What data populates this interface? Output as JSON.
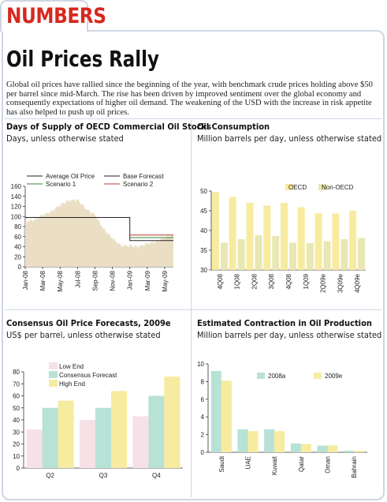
{
  "section_label": "NUMBERS",
  "headline": "Oil Prices Rally",
  "intro": "Global oil prices have rallied since the beginning of the year, with benchmark crude prices holding above $50 per barrel since mid-March. The rise has been driven by improved sentiment over the global economy and consequently expectations of higher oil demand. The weakening of the USD with the increase in risk appetite has also helped to push up oil prices.",
  "colors": {
    "accent_red": "#d8281e",
    "frame": "#cfd6e4",
    "yellow": "#f7eba0",
    "mint": "#b7e2d5",
    "pink": "#f6e1e6",
    "area_beige": "#eadfc4"
  },
  "chart_data": [
    {
      "id": "supply",
      "type": "area",
      "title": "Days of Supply of OECD Commercial Oil Stocks",
      "subtitle": "Days, unless otherwise stated",
      "ylim": [
        0,
        160
      ],
      "yticks": [
        0,
        20,
        40,
        60,
        80,
        100,
        120,
        140,
        160
      ],
      "x_range": [
        "Jan-08",
        "Jun-09"
      ],
      "xticks": [
        "Jan-08",
        "Mar-08",
        "May-08",
        "Jul-08",
        "Sep-08",
        "Nov-08",
        "Jan-09",
        "Mar-09",
        "May-09"
      ],
      "area_series": {
        "name": "Average Oil Price",
        "x": [
          "Jan-08",
          "Feb-08",
          "Mar-08",
          "Apr-08",
          "May-08",
          "Jun-08",
          "Jul-08",
          "Aug-08",
          "Sep-08",
          "Oct-08",
          "Nov-08",
          "Dec-08",
          "Jan-09",
          "Feb-09",
          "Mar-09",
          "Apr-09",
          "May-09",
          "Jun-09"
        ],
        "values": [
          90,
          93,
          103,
          110,
          123,
          132,
          133,
          115,
          103,
          75,
          57,
          42,
          42,
          40,
          46,
          50,
          58,
          64
        ]
      },
      "line_series": [
        {
          "name": "Base Forecast",
          "color": "#222222",
          "points": [
            [
              "Jan-08",
              98
            ],
            [
              "Jan-09",
              98
            ],
            [
              "Jan-09",
              52
            ],
            [
              "Jun-09",
              52
            ]
          ]
        },
        {
          "name": "Scenario 1",
          "color": "#2f8a3a",
          "points": [
            [
              "Jan-09",
              58
            ],
            [
              "Jun-09",
              58
            ]
          ]
        },
        {
          "name": "Scenario 2",
          "color": "#c0392b",
          "points": [
            [
              "Jan-09",
              63
            ],
            [
              "Jun-09",
              63
            ]
          ]
        }
      ],
      "legend": [
        "Average Oil Price",
        "Base Forecast",
        "Scenario 1",
        "Scenario 2"
      ],
      "legend_position": "top"
    },
    {
      "id": "consumption",
      "type": "bar",
      "title": "Oil Consumption",
      "subtitle": "Million barrels per day, unless otherwise stated",
      "ylim": [
        30,
        50
      ],
      "yticks": [
        30,
        35,
        40,
        45,
        50
      ],
      "categories": [
        "4Q08",
        "1Q08",
        "2Q08",
        "3Q08",
        "4Q08",
        "1Q09",
        "2Q09e",
        "3Q09e",
        "4Q09e"
      ],
      "series": [
        {
          "name": "OECD",
          "color": "#f7eba0",
          "values": [
            49.7,
            48.5,
            47.0,
            46.3,
            47.0,
            45.9,
            44.4,
            44.3,
            45.0
          ]
        },
        {
          "name": "Non-OECD",
          "color": "#e9e7b4",
          "values": [
            36.9,
            37.8,
            38.8,
            38.6,
            36.9,
            36.8,
            37.3,
            37.8,
            38.1
          ]
        }
      ],
      "legend_position": "top-right"
    },
    {
      "id": "forecasts",
      "type": "bar",
      "title": "Consensus Oil Price Forecasts, 2009e",
      "subtitle": "US$ per barrel, unless otherwise stated",
      "ylim": [
        0,
        80
      ],
      "yticks": [
        0,
        10,
        20,
        30,
        40,
        50,
        60,
        70,
        80
      ],
      "categories": [
        "Q2",
        "Q3",
        "Q4"
      ],
      "series": [
        {
          "name": "Low End",
          "color": "#f6e1e6",
          "values": [
            32,
            40,
            43
          ]
        },
        {
          "name": "Consensus Forecast",
          "color": "#b7e2d5",
          "values": [
            50,
            50,
            60
          ]
        },
        {
          "name": "High End",
          "color": "#f7eba0",
          "values": [
            56,
            64,
            76
          ]
        }
      ],
      "legend_position": "top-left"
    },
    {
      "id": "contraction",
      "type": "bar",
      "title": "Estimated Contraction in Oil Production",
      "subtitle": "Million barrels per day, unless otherwise stated",
      "ylim": [
        0,
        10
      ],
      "yticks": [
        0,
        2,
        4,
        6,
        8,
        10
      ],
      "categories": [
        "Saudi",
        "UAE",
        "Kuwait",
        "Qatar",
        "Oman",
        "Bahrain"
      ],
      "series": [
        {
          "name": "2008a",
          "color": "#b7e2d5",
          "values": [
            9.2,
            2.6,
            2.6,
            1.0,
            0.75,
            0.18
          ]
        },
        {
          "name": "2009e",
          "color": "#f7eba0",
          "values": [
            8.1,
            2.4,
            2.4,
            0.95,
            0.8,
            0.18
          ]
        }
      ],
      "legend_position": "top"
    }
  ]
}
